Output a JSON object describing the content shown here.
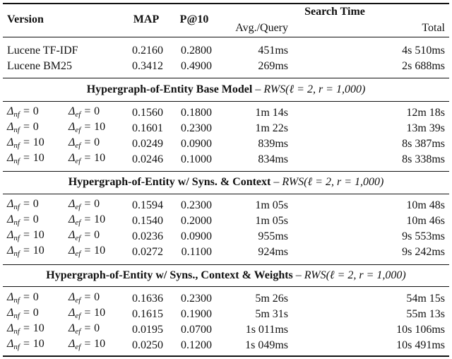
{
  "header": {
    "version": "Version",
    "map": "MAP",
    "p10": "P@10",
    "search_time": "Search Time",
    "avg_query": "Avg./Query",
    "total": "Total"
  },
  "delta": {
    "symbol": "Δ",
    "nf": "nf",
    "ef": "ef",
    "equals": "="
  },
  "groups": [
    {
      "rows": [
        {
          "version": "Lucene TF-IDF",
          "map": "0.2160",
          "p10": "0.2800",
          "avg": "451ms",
          "total": "4s 510ms"
        },
        {
          "version": "Lucene BM25",
          "map": "0.3412",
          "p10": "0.4900",
          "avg": "269ms",
          "total": "2s 688ms"
        }
      ]
    },
    {
      "title": "Hypergraph-of-Entity Base Model",
      "separator": "–",
      "params": "RWS(ℓ = 2, r = 1,000)",
      "rows": [
        {
          "nf": "0",
          "ef": "0",
          "map": "0.1560",
          "p10": "0.1800",
          "avg": "1m 14s",
          "total": "12m 18s"
        },
        {
          "nf": "0",
          "ef": "10",
          "map": "0.1601",
          "p10": "0.2300",
          "avg": "1m 22s",
          "total": "13m 39s"
        },
        {
          "nf": "10",
          "ef": "0",
          "map": "0.0249",
          "p10": "0.0900",
          "avg": "839ms",
          "total": "8s 387ms"
        },
        {
          "nf": "10",
          "ef": "10",
          "map": "0.0246",
          "p10": "0.1000",
          "avg": "834ms",
          "total": "8s 338ms"
        }
      ]
    },
    {
      "title": "Hypergraph-of-Entity w/ Syns. & Context",
      "separator": "–",
      "params": "RWS(ℓ = 2, r = 1,000)",
      "rows": [
        {
          "nf": "0",
          "ef": "0",
          "map": "0.1594",
          "p10": "0.2300",
          "avg": "1m 05s",
          "total": "10m 48s"
        },
        {
          "nf": "0",
          "ef": "10",
          "map": "0.1540",
          "p10": "0.2000",
          "avg": "1m 05s",
          "total": "10m 46s"
        },
        {
          "nf": "10",
          "ef": "0",
          "map": "0.0236",
          "p10": "0.0900",
          "avg": "955ms",
          "total": "9s 553ms"
        },
        {
          "nf": "10",
          "ef": "10",
          "map": "0.0272",
          "p10": "0.1100",
          "avg": "924ms",
          "total": "9s 242ms"
        }
      ]
    },
    {
      "title": "Hypergraph-of-Entity w/ Syns., Context & Weights",
      "separator": "–",
      "params": "RWS(ℓ = 2, r = 1,000)",
      "rows": [
        {
          "nf": "0",
          "ef": "0",
          "map": "0.1636",
          "p10": "0.2300",
          "avg": "5m 26s",
          "total": "54m 15s"
        },
        {
          "nf": "0",
          "ef": "10",
          "map": "0.1615",
          "p10": "0.1900",
          "avg": "5m 31s",
          "total": "55m 13s"
        },
        {
          "nf": "10",
          "ef": "0",
          "map": "0.0195",
          "p10": "0.0700",
          "avg": "1s 011ms",
          "total": "10s 106ms"
        },
        {
          "nf": "10",
          "ef": "10",
          "map": "0.0250",
          "p10": "0.1200",
          "avg": "1s 049ms",
          "total": "10s 491ms"
        }
      ]
    }
  ]
}
